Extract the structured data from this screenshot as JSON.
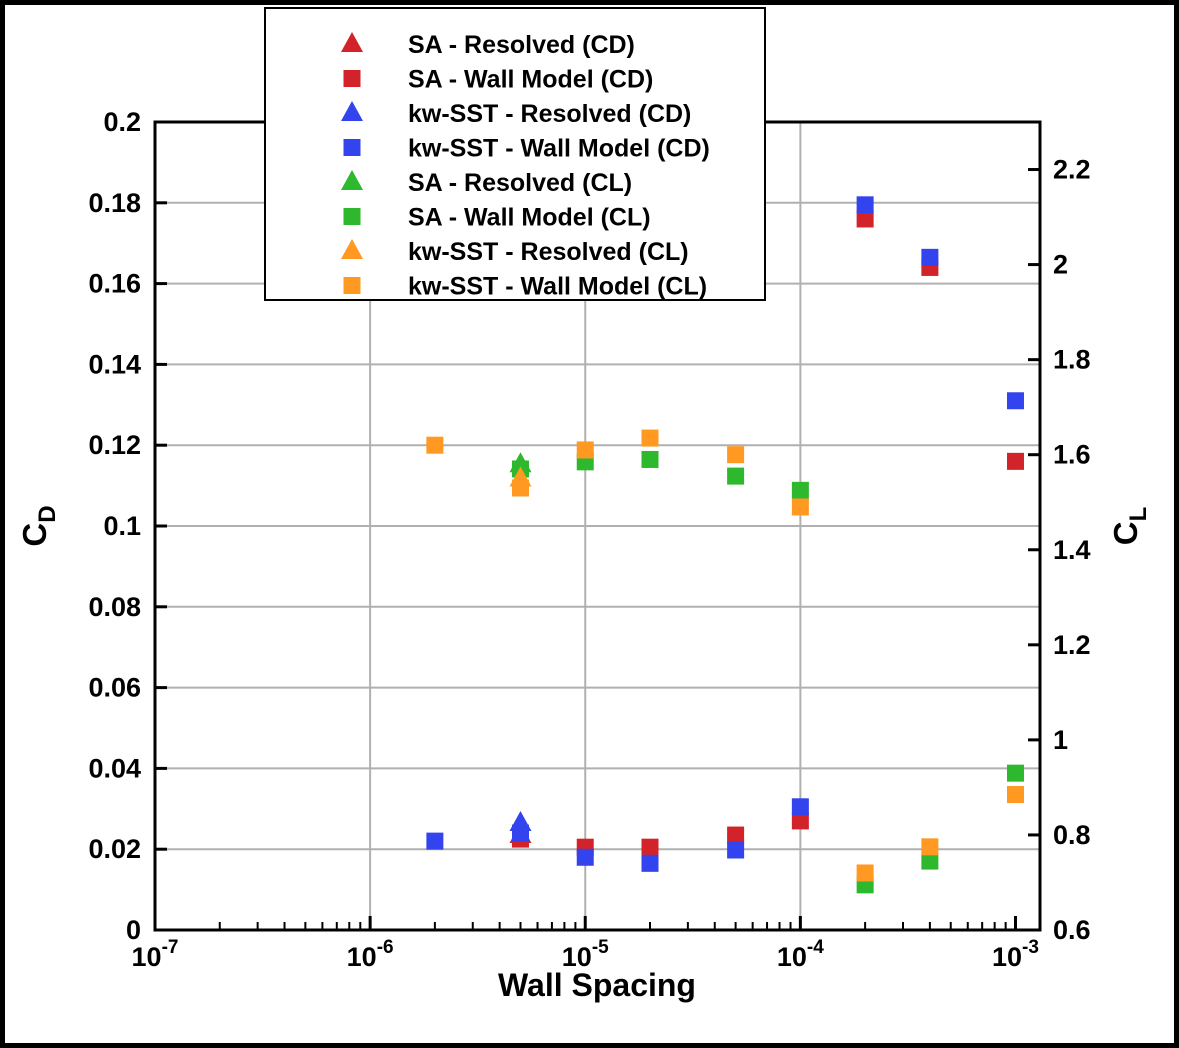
{
  "chart_data": {
    "type": "scatter",
    "title": "",
    "xlabel": "Wall Spacing",
    "x_scale": "log",
    "x_range": [
      1e-07,
      0.0013
    ],
    "x_major_ticks_exponents": [
      -7,
      -6,
      -5,
      -4,
      -3
    ],
    "x_gridline_exponents": [
      -6,
      -5,
      -4
    ],
    "left_axis": {
      "label": "C",
      "label_subscript": "D",
      "range": [
        0,
        0.2
      ],
      "ticks": [
        0,
        0.02,
        0.04,
        0.06,
        0.08,
        0.1,
        0.12,
        0.14,
        0.16,
        0.18,
        0.2
      ],
      "tick_labels": [
        "0",
        "0.02",
        "0.04",
        "0.06",
        "0.08",
        "0.1",
        "0.12",
        "0.14",
        "0.16",
        "0.18",
        "0.2"
      ],
      "gridlines": [
        0.02,
        0.04,
        0.06,
        0.08,
        0.1,
        0.12,
        0.14,
        0.16,
        0.18
      ]
    },
    "right_axis": {
      "label": "C",
      "label_subscript": "L",
      "range": [
        0.6,
        2.3
      ],
      "ticks": [
        0.6,
        0.8,
        1,
        1.2,
        1.4,
        1.6,
        1.8,
        2,
        2.2
      ],
      "tick_labels": [
        "0.6",
        "0.8",
        "1",
        "1.2",
        "1.4",
        "1.6",
        "1.8",
        "2",
        "2.2"
      ]
    },
    "colors": {
      "red": "#d2232a",
      "blue": "#3344ee",
      "green": "#2eb82e",
      "orange": "#ff9922",
      "grid": "#b0b0b0",
      "axis": "#000000"
    },
    "legend": {
      "position": "top-center",
      "items": [
        {
          "label": "SA - Resolved (CD)",
          "marker": "triangle",
          "color": "red"
        },
        {
          "label": "SA - Wall Model (CD)",
          "marker": "square",
          "color": "red"
        },
        {
          "label": "kw-SST - Resolved (CD)",
          "marker": "triangle",
          "color": "blue"
        },
        {
          "label": "kw-SST - Wall Model (CD)",
          "marker": "square",
          "color": "blue"
        },
        {
          "label": "SA - Resolved (CL)",
          "marker": "triangle",
          "color": "green"
        },
        {
          "label": "SA - Wall Model (CL)",
          "marker": "square",
          "color": "green"
        },
        {
          "label": "kw-SST - Resolved (CL)",
          "marker": "triangle",
          "color": "orange"
        },
        {
          "label": "kw-SST - Wall Model (CL)",
          "marker": "square",
          "color": "orange"
        }
      ]
    },
    "series": [
      {
        "name": "SA - Resolved (CD)",
        "marker": "triangle",
        "color": "red",
        "axis": "left",
        "points": [
          [
            5e-06,
            0.0235
          ]
        ]
      },
      {
        "name": "SA - Wall Model (CD)",
        "marker": "square",
        "color": "red",
        "axis": "left",
        "points": [
          [
            5e-06,
            0.0225
          ],
          [
            1e-05,
            0.0205
          ],
          [
            2e-05,
            0.0205
          ],
          [
            5e-05,
            0.0235
          ],
          [
            0.0001,
            0.027
          ],
          [
            0.0002,
            0.176
          ],
          [
            0.0004,
            0.164
          ],
          [
            0.001,
            0.116
          ]
        ]
      },
      {
        "name": "kw-SST - Resolved (CD)",
        "marker": "triangle",
        "color": "blue",
        "axis": "left",
        "points": [
          [
            5e-06,
            0.0265
          ]
        ]
      },
      {
        "name": "kw-SST - Wall Model (CD)",
        "marker": "square",
        "color": "blue",
        "axis": "left",
        "points": [
          [
            2e-06,
            0.022
          ],
          [
            5e-06,
            0.024
          ],
          [
            1e-05,
            0.018
          ],
          [
            2e-05,
            0.0165
          ],
          [
            5e-05,
            0.0198
          ],
          [
            0.0001,
            0.0305
          ],
          [
            0.0002,
            0.1795
          ],
          [
            0.0004,
            0.1665
          ],
          [
            0.001,
            0.131
          ]
        ]
      },
      {
        "name": "SA - Resolved (CL)",
        "marker": "triangle",
        "color": "green",
        "axis": "right",
        "points": [
          [
            5e-06,
            1.58
          ]
        ]
      },
      {
        "name": "SA - Wall Model (CL)",
        "marker": "square",
        "color": "green",
        "axis": "right",
        "points": [
          [
            5e-06,
            1.57
          ],
          [
            1e-05,
            1.585
          ],
          [
            2e-05,
            1.59
          ],
          [
            5e-05,
            1.555
          ],
          [
            0.0001,
            1.525
          ],
          [
            0.0002,
            0.695
          ],
          [
            0.0004,
            0.745
          ],
          [
            0.001,
            0.93
          ]
        ]
      },
      {
        "name": "kw-SST - Resolved (CL)",
        "marker": "triangle",
        "color": "orange",
        "axis": "right",
        "points": [
          [
            5e-06,
            1.55
          ]
        ]
      },
      {
        "name": "kw-SST - Wall Model (CL)",
        "marker": "square",
        "color": "orange",
        "axis": "right",
        "points": [
          [
            2e-06,
            1.62
          ],
          [
            5e-06,
            1.53
          ],
          [
            1e-05,
            1.61
          ],
          [
            2e-05,
            1.635
          ],
          [
            5e-05,
            1.6
          ],
          [
            0.0001,
            1.49
          ],
          [
            0.0002,
            0.72
          ],
          [
            0.0004,
            0.775
          ],
          [
            0.001,
            0.885
          ]
        ]
      }
    ]
  }
}
